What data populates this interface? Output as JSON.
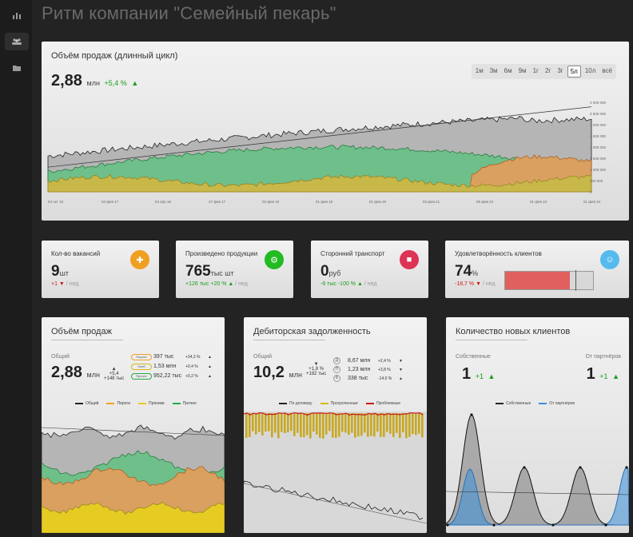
{
  "page_title": "Ритм компании \"Семейный пекарь\"",
  "sidebar": {
    "icons": [
      "bar-chart-icon",
      "users-icon",
      "folder-icon"
    ]
  },
  "main_chart": {
    "title": "Объём продаж (длинный цикл)",
    "value": "2,88",
    "unit": "млн",
    "delta": "+5,4 %",
    "ranges": [
      "1м",
      "3м",
      "6м",
      "9м",
      "1г",
      "2г",
      "3г",
      "5л",
      "10л",
      "всё"
    ],
    "active_range": "5л",
    "y_ticks": [
      "4 000 000",
      "3 500 000",
      "3 000 000",
      "2 500 000",
      "2 000 000",
      "1 500 000",
      "1 000 000",
      "500 000",
      "0"
    ],
    "x_ticks": [
      "04 окт 15",
      "03 фев 17",
      "04 апр 16",
      "27 фев 17",
      "02 фев 18",
      "01 фев 19",
      "01 фев 20",
      "03 фев 21",
      "05 фев 22",
      "01 фев 23",
      "01 фев 24"
    ]
  },
  "kpis": [
    {
      "title": "Кол-во вакансий",
      "value": "9",
      "unit": "шт",
      "delta": "+1",
      "period": "/ нед",
      "color": "#f0a020",
      "icon": "person-add-icon",
      "trend": "down"
    },
    {
      "title": "Произведено продукции",
      "value": "765",
      "unit": "тыс шт",
      "delta": "+126 тыс +20 %",
      "period": "/ нед",
      "color": "#22bb22",
      "icon": "factory-icon",
      "trend": "up"
    },
    {
      "title": "Сторонний транспорт",
      "value": "0",
      "unit": "руб",
      "delta": "-6 тыс -100 %",
      "period": "/ нед",
      "color": "#dd3355",
      "icon": "truck-icon",
      "trend": "up"
    },
    {
      "title": "Удовлетворённость клиентов",
      "value": "74",
      "unit": "%",
      "delta": "-18,7 %",
      "period": "/ нед",
      "color": "#55bbee",
      "icon": "smile-icon",
      "trend": "down"
    }
  ],
  "satisfaction_level": 0.74,
  "sales": {
    "title": "Объём продаж",
    "label": "Общий",
    "value": "2,88",
    "unit": "млн",
    "delta_pct": "+5,4",
    "delta_abs": "+148 тыс",
    "rows": [
      {
        "name": "Пироги",
        "color": "#f0a020",
        "value": "397 тыс",
        "delta": "+34,3 %"
      },
      {
        "name": "Хлеб",
        "color": "#d4b81a",
        "value": "1,53 млн",
        "delta": "+0,4 %"
      },
      {
        "name": "Прочее",
        "color": "#22aa44",
        "value": "952,22 тыс",
        "delta": "+0,2 %"
      }
    ],
    "legend": [
      {
        "name": "Общий",
        "color": "#222222"
      },
      {
        "name": "Пироги",
        "color": "#f0a020"
      },
      {
        "name": "Пряники",
        "color": "#e6cc22"
      },
      {
        "name": "Прочее",
        "color": "#22aa44"
      }
    ]
  },
  "debts": {
    "title": "Дебиторская задолженность",
    "label": "Общий",
    "value": "10,2",
    "unit": "млн",
    "delta_pct": "+1,8 %",
    "delta_abs": "+182 тыс",
    "rows": [
      {
        "icon": "Д",
        "value": "8,67 млн",
        "delta": "+2,4 %",
        "trend": "down"
      },
      {
        "icon": "П",
        "value": "1,23 млн",
        "delta": "+3,8 %",
        "trend": "down"
      },
      {
        "icon": "Б",
        "value": "338 тыс",
        "delta": "-14,0 %",
        "trend": "up"
      }
    ],
    "legend": [
      {
        "name": "По договору",
        "color": "#222222"
      },
      {
        "name": "Просроченные",
        "color": "#d4b81a"
      },
      {
        "name": "Проблемные",
        "color": "#cc1a1a"
      }
    ]
  },
  "clients": {
    "title": "Количество новых клиентов",
    "own_label": "Собственные",
    "own_value": "1",
    "own_delta": "+1",
    "partner_label": "От партнёров",
    "partner_value": "1",
    "partner_delta": "+1",
    "legend": [
      {
        "name": "Собственные",
        "color": "#222222"
      },
      {
        "name": "От партнёров",
        "color": "#3b8fd8"
      }
    ]
  }
}
